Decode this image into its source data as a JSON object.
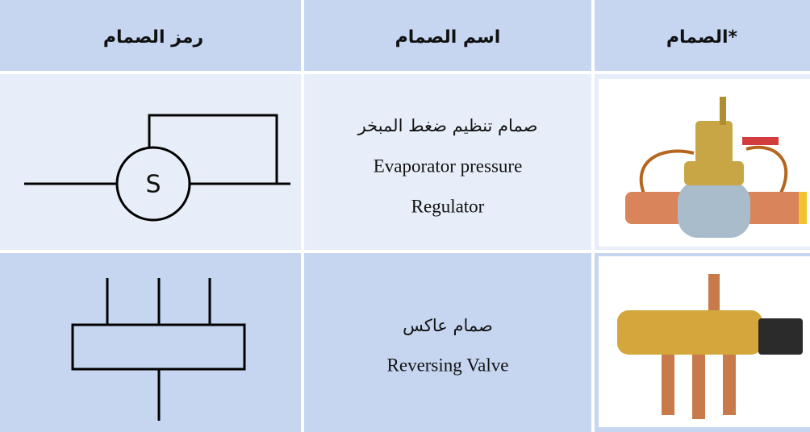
{
  "table": {
    "header": [
      "رمز الصمام",
      "اسم الصمام",
      "الصمام*"
    ],
    "rows": [
      {
        "symbol_text": "S",
        "name": [
          "صمام تنظيم ضغط المبخر",
          "Evaporator pressure",
          "Regulator"
        ]
      },
      {
        "name": [
          "صمام عاكس",
          "Reversing Valve"
        ]
      }
    ]
  }
}
